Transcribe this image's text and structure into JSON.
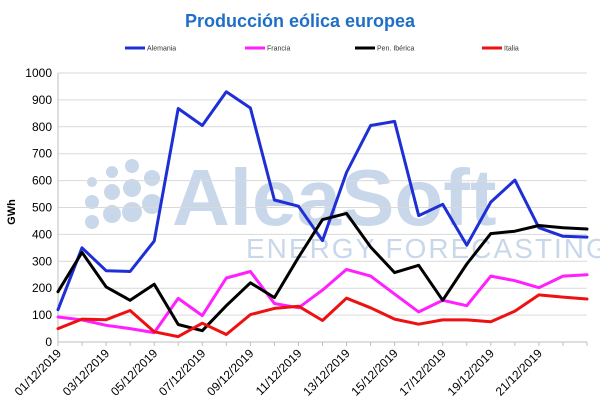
{
  "chart_data": {
    "type": "line",
    "title": "Producción eólica europea",
    "ylabel": "GWh",
    "xlabel": "",
    "ylim": [
      0,
      1000
    ],
    "yticks": [
      0,
      100,
      200,
      300,
      400,
      500,
      600,
      700,
      800,
      900,
      1000
    ],
    "grid": true,
    "legend_position": "top",
    "x": [
      "01/12/2019",
      "02/12/2019",
      "03/12/2019",
      "04/12/2019",
      "05/12/2019",
      "06/12/2019",
      "07/12/2019",
      "08/12/2019",
      "09/12/2019",
      "10/12/2019",
      "11/12/2019",
      "12/12/2019",
      "13/12/2019",
      "14/12/2019",
      "15/12/2019",
      "16/12/2019",
      "17/12/2019",
      "18/12/2019",
      "19/12/2019",
      "20/12/2019",
      "21/12/2019",
      "22/12/2019",
      "23/12/2019"
    ],
    "x_tick_labels": [
      "01/12/2019",
      "",
      "03/12/2019",
      "",
      "05/12/2019",
      "",
      "07/12/2019",
      "",
      "09/12/2019",
      "",
      "11/12/2019",
      "",
      "13/12/2019",
      "",
      "15/12/2019",
      "",
      "17/12/2019",
      "",
      "19/12/2019",
      "",
      "21/12/2019",
      "",
      ""
    ],
    "series": [
      {
        "name": "Alemania",
        "color": "#1f2fd6",
        "values": [
          120,
          350,
          265,
          262,
          375,
          868,
          805,
          930,
          870,
          528,
          505,
          377,
          630,
          805,
          820,
          470,
          512,
          360,
          520,
          602,
          425,
          393,
          390
        ]
      },
      {
        "name": "Francia",
        "color": "#ff1fff",
        "values": [
          93,
          82,
          62,
          50,
          35,
          162,
          98,
          238,
          262,
          143,
          127,
          193,
          270,
          245,
          178,
          112,
          155,
          135,
          245,
          228,
          202,
          245,
          250
        ]
      },
      {
        "name": "Pen. Ibérica",
        "color": "#000000",
        "values": [
          187,
          333,
          205,
          155,
          215,
          65,
          42,
          135,
          220,
          165,
          315,
          455,
          478,
          353,
          258,
          285,
          155,
          290,
          403,
          412,
          433,
          425,
          420
        ]
      },
      {
        "name": "Italia",
        "color": "#ee1111",
        "values": [
          50,
          85,
          83,
          117,
          38,
          20,
          70,
          28,
          102,
          125,
          133,
          80,
          163,
          127,
          85,
          66,
          82,
          82,
          75,
          115,
          175,
          167,
          160
        ]
      }
    ]
  }
}
